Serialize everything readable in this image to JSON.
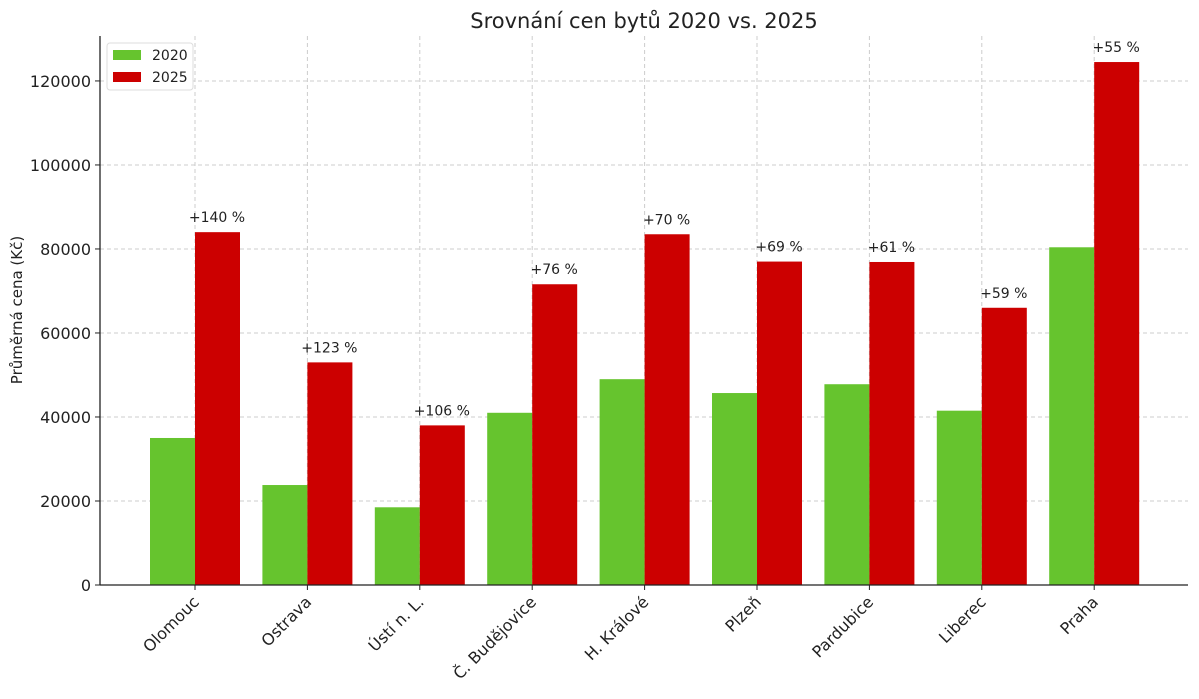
{
  "chart_data": {
    "type": "bar",
    "title": "Srovnání cen bytů 2020 vs. 2025",
    "xlabel": "",
    "ylabel": "Průměrná cena (Kč)",
    "ylim": [
      0,
      130700
    ],
    "yticks": [
      "0",
      "20000",
      "40000",
      "60000",
      "80000",
      "100000",
      "120000"
    ],
    "grid": true,
    "legend_position": "top-left",
    "categories": [
      "Olomouc",
      "Ostrava",
      "Ústí n. L.",
      "Č. Budějovice",
      "H. Králové",
      "Plzeň",
      "Pardubice",
      "Liberec",
      "Praha"
    ],
    "series": [
      {
        "name": "2020",
        "color": "#66c42e",
        "values": [
          35000,
          23800,
          18500,
          41000,
          49000,
          45700,
          47800,
          41500,
          80400
        ]
      },
      {
        "name": "2025",
        "color": "#cc0000",
        "values": [
          84000,
          53000,
          38000,
          71600,
          83500,
          77000,
          76900,
          66000,
          124500
        ]
      }
    ],
    "annotations": [
      "+140 %",
      "+123 %",
      "+106 %",
      "+76 %",
      "+70 %",
      "+69 %",
      "+61 %",
      "+59 %",
      "+55 %"
    ]
  }
}
